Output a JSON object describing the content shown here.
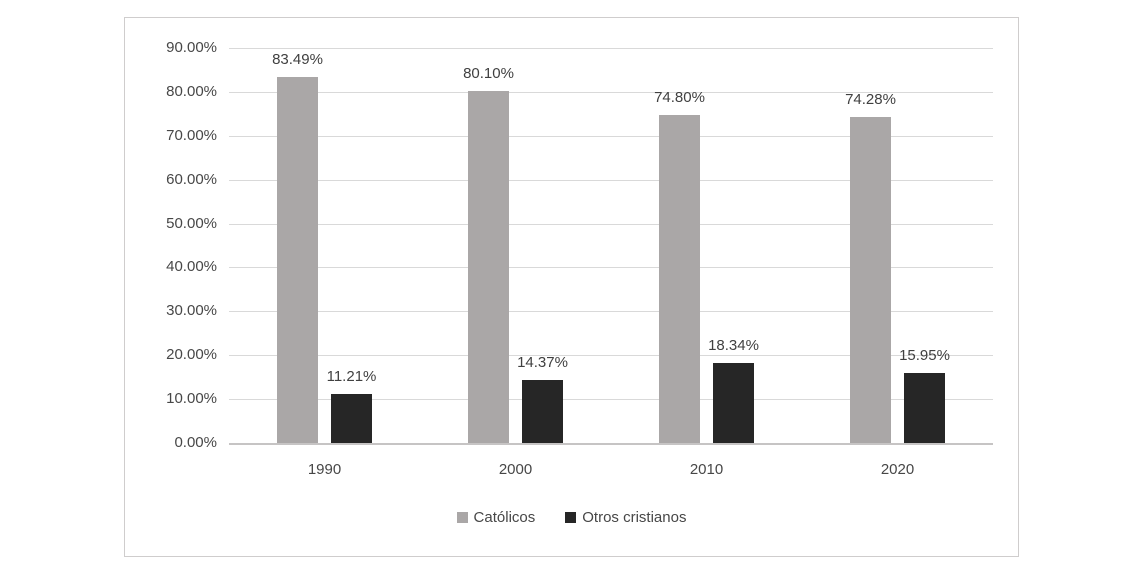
{
  "chart_data": {
    "type": "bar",
    "categories": [
      "1990",
      "2000",
      "2010",
      "2020"
    ],
    "series": [
      {
        "name": "Católicos",
        "color": "#aaa7a7",
        "values": [
          83.49,
          80.1,
          74.8,
          74.28
        ],
        "labels": [
          "83.49%",
          "80.10%",
          "74.80%",
          "74.28%"
        ]
      },
      {
        "name": "Otros cristianos",
        "color": "#262626",
        "values": [
          11.21,
          14.37,
          18.34,
          15.95
        ],
        "labels": [
          "11.21%",
          "14.37%",
          "18.34%",
          "15.95%"
        ]
      }
    ],
    "title": "",
    "xlabel": "",
    "ylabel": "",
    "y_axis": {
      "min": 0,
      "max": 90,
      "step": 10,
      "tick_labels": [
        "0.00%",
        "10.00%",
        "20.00%",
        "30.00%",
        "40.00%",
        "50.00%",
        "60.00%",
        "70.00%",
        "80.00%",
        "90.00%"
      ]
    },
    "grid": true,
    "grid_color": "#d9d9d9",
    "legend_position": "bottom"
  }
}
